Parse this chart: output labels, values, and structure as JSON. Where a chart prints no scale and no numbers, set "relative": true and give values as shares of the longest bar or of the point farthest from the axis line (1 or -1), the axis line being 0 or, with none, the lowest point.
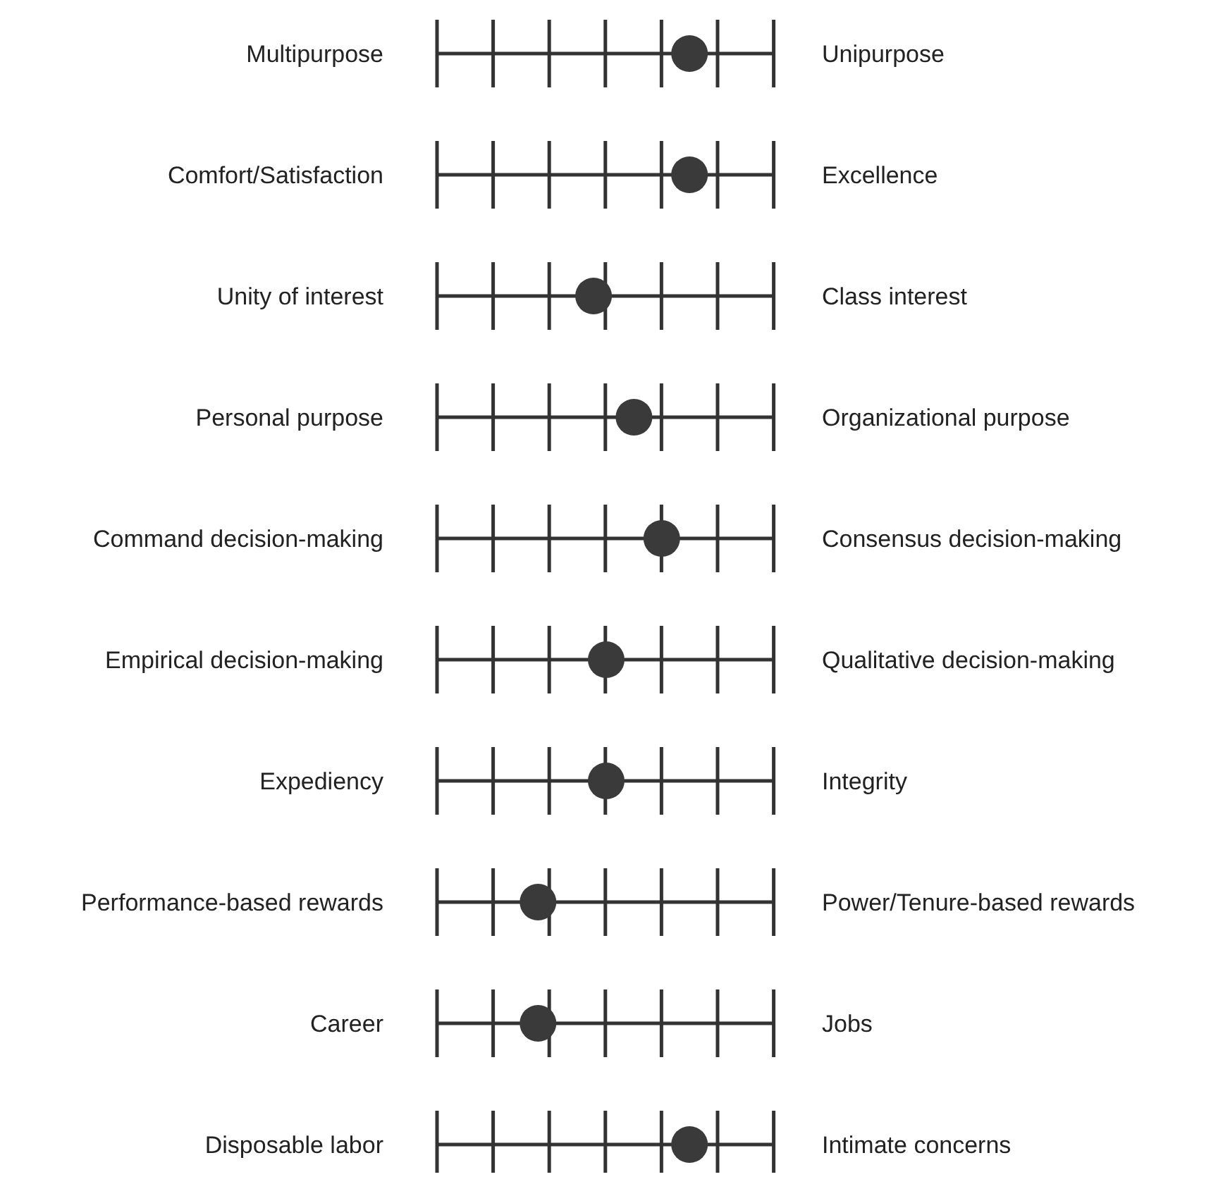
{
  "chart_data": {
    "type": "scatter",
    "orientation": "horizontal",
    "relative": true,
    "categories": [
      "Multipurpose",
      "Comfort/Satisfaction",
      "Unity of interest",
      "Personal purpose",
      "Command decision-making",
      "Empirical decision-making",
      "Expediency",
      "Performance-based rewards",
      "Career",
      "Disposable labor"
    ],
    "y2_categories": [
      "Unipurpose",
      "Excellence",
      "Class interest",
      "Organizational purpose",
      "Consensus decision-making",
      "Qualitative decision-making",
      "Integrity",
      "Power/Tenure-based rewards",
      "Jobs",
      "Intimate concerns"
    ],
    "values": [
      1,
      1,
      0.62,
      0.78,
      0.89,
      0.67,
      0.67,
      0.4,
      0.4,
      1
    ],
    "color": "#3a3a3a",
    "marker": "circle",
    "grid": "y"
  }
}
